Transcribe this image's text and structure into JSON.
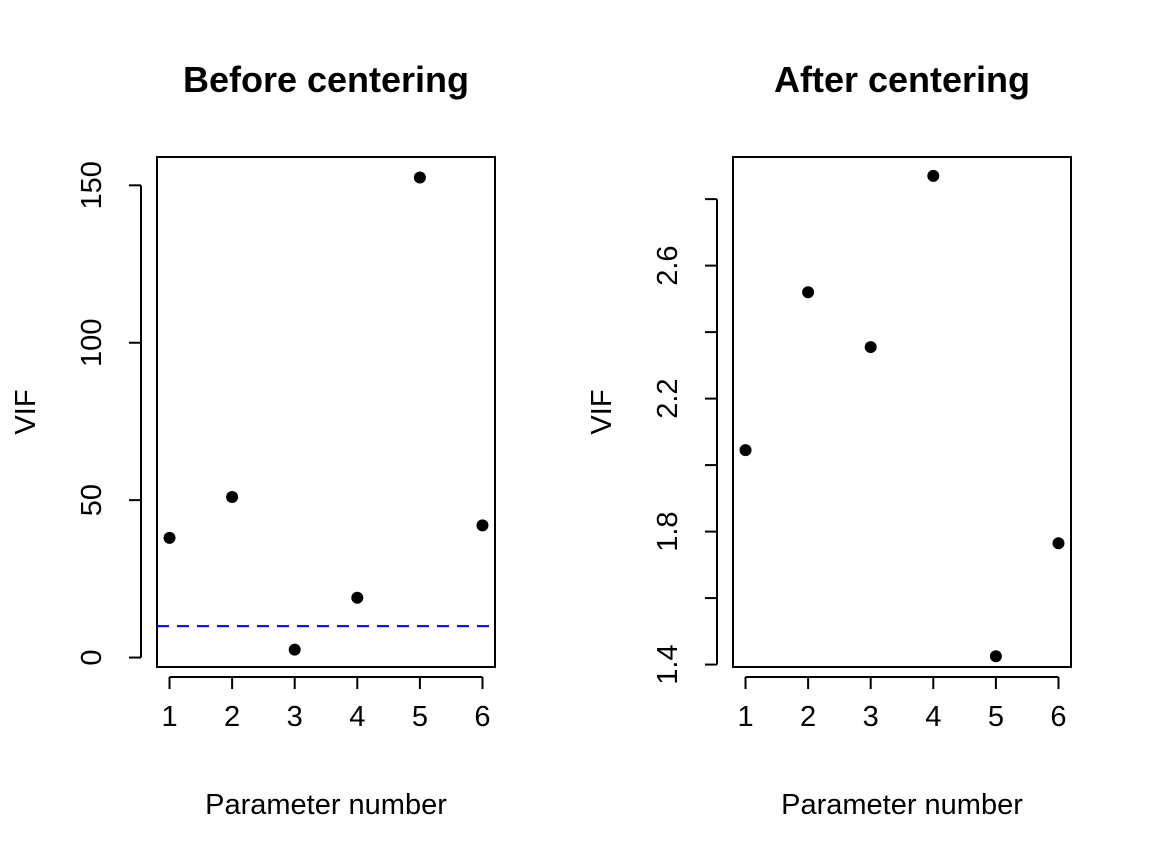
{
  "chart_data": [
    {
      "type": "scatter",
      "title": "Before centering",
      "xlabel": "Parameter number",
      "ylabel": "VIF",
      "x": [
        1,
        2,
        3,
        4,
        5,
        6
      ],
      "y": [
        38,
        51,
        2.5,
        19,
        152.5,
        42
      ],
      "xticks": [
        "1",
        "2",
        "3",
        "4",
        "5",
        "6"
      ],
      "yticks": [
        0,
        50,
        100,
        150
      ],
      "xlim": [
        0.8,
        6.2
      ],
      "ylim": [
        -3,
        159
      ],
      "hline": {
        "y": 10,
        "color": "#0000ff",
        "style": "dashed"
      },
      "grid": false
    },
    {
      "type": "scatter",
      "title": "After centering",
      "xlabel": "Parameter number",
      "ylabel": "VIF",
      "x": [
        1,
        2,
        3,
        4,
        5,
        6
      ],
      "y": [
        2.045,
        2.52,
        2.355,
        2.87,
        1.425,
        1.765
      ],
      "xticks": [
        "1",
        "2",
        "3",
        "4",
        "5",
        "6"
      ],
      "yticks": [
        1.4,
        1.6,
        1.8,
        2.0,
        2.2,
        2.4,
        2.6,
        2.8
      ],
      "ytick_labels": [
        "1.4",
        "",
        "1.8",
        "",
        "2.2",
        "",
        "2.6",
        ""
      ],
      "xlim": [
        0.8,
        6.2
      ],
      "ylim": [
        1.3927,
        2.9267
      ],
      "grid": false
    }
  ]
}
